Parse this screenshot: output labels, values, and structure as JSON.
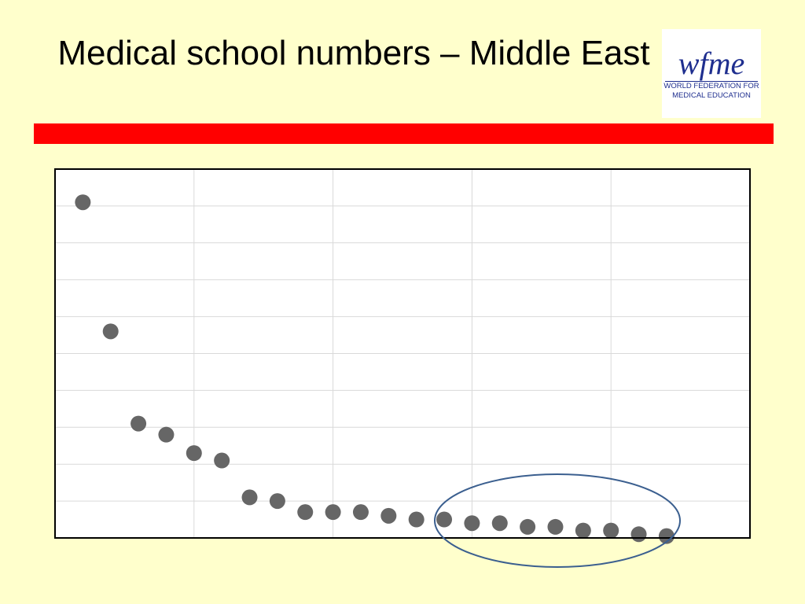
{
  "title": "Medical school numbers – Middle East",
  "logo": {
    "mark": "wfme",
    "line1": "WORLD FEDERATION FOR",
    "line2": "MEDICAL EDUCATION"
  },
  "chart_data": {
    "type": "scatter",
    "color": "#666666",
    "grid": true,
    "x": [
      1,
      2,
      3,
      4,
      5,
      6,
      7,
      8,
      9,
      10,
      11,
      12,
      13,
      14,
      15,
      16,
      17,
      18,
      19,
      20,
      21,
      22
    ],
    "values": [
      91,
      56,
      31,
      28,
      23,
      21,
      11,
      10,
      7,
      7,
      7,
      6,
      5,
      5,
      4,
      4,
      3,
      3,
      2,
      2,
      1,
      0.5
    ],
    "xlim": [
      0,
      25
    ],
    "ylim": [
      0,
      100
    ],
    "xticks": [
      0,
      5,
      10,
      15,
      20,
      25
    ],
    "yticks": [
      0,
      10,
      20,
      30,
      40,
      50,
      60,
      70,
      80,
      90,
      100
    ]
  }
}
